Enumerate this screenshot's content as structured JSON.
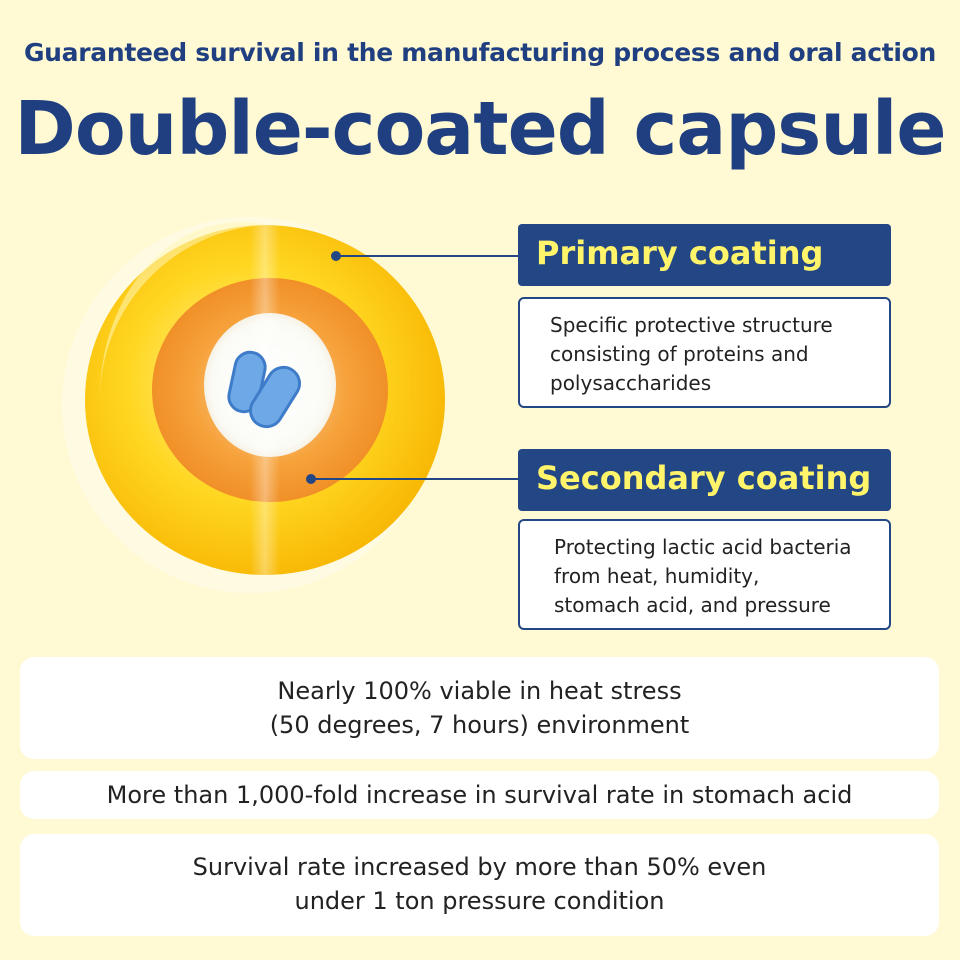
{
  "header": {
    "subtitle": "Guaranteed survival in the manufacturing process and oral action",
    "title": "Double-coated capsule"
  },
  "coatings": [
    {
      "label": "Primary coating",
      "description_lines": [
        "Specific protective structure",
        "consisting of proteins and",
        "polysaccharides"
      ]
    },
    {
      "label": "Secondary coating",
      "description_lines": [
        "Protecting lactic acid bacteria",
        "from heat, humidity,",
        "stomach acid, and pressure"
      ]
    }
  ],
  "facts": [
    {
      "lines": [
        "Nearly 100% viable in heat stress",
        "(50 degrees, 7 hours) environment"
      ]
    },
    {
      "lines": [
        "More than 1,000-fold increase in survival rate in stomach acid"
      ]
    },
    {
      "lines": [
        "Survival rate increased by more than 50% even",
        "under 1 ton pressure condition"
      ]
    }
  ],
  "colors": {
    "background": "#fff9d4",
    "navy": "#234685",
    "label_text": "#fff46a",
    "outer_coating": "#ffd21f",
    "inner_coating": "#f39a2e",
    "bacteria": "#6fa8e6"
  },
  "icons": {
    "capsule": "capsule-cross-section-icon",
    "bacteria": "bacteria-icon"
  }
}
